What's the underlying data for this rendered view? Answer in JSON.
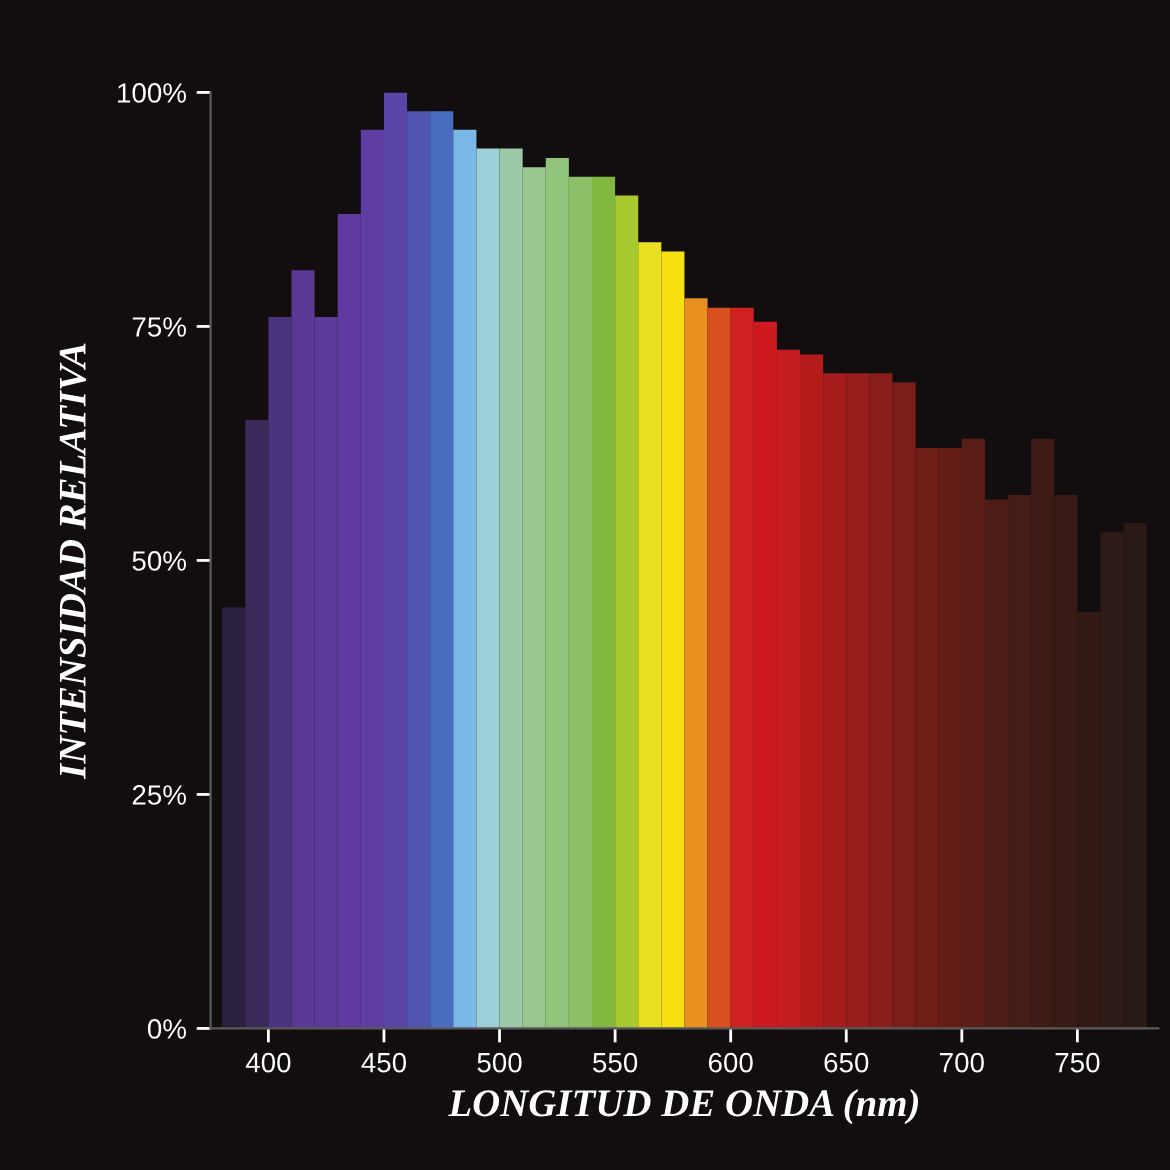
{
  "chart_data": {
    "type": "histogram",
    "xlabel": "LONGITUD DE ONDA (nm)",
    "ylabel": "INTENSIDAD RELATIVA",
    "bins": [
      380,
      390,
      400,
      410,
      420,
      430,
      440,
      450,
      460,
      470,
      480,
      490,
      500,
      510,
      520,
      530,
      540,
      550,
      560,
      570,
      580,
      590,
      600,
      610,
      620,
      630,
      640,
      650,
      660,
      670,
      680,
      690,
      700,
      710,
      720,
      730,
      740,
      750,
      760,
      770,
      780
    ],
    "values": [
      45,
      65,
      76,
      81,
      76,
      87,
      96,
      100,
      98,
      98,
      96,
      94,
      94,
      92,
      93,
      91,
      91,
      89,
      84,
      83,
      78,
      77,
      77,
      75.5,
      72.5,
      72,
      70,
      70,
      70,
      69,
      62,
      62,
      63,
      56.5,
      57,
      63,
      57,
      44.5,
      53,
      54
    ],
    "colors": [
      "#2a1f3d",
      "#3a2a5a",
      "#4a3480",
      "#5a3a95",
      "#5c3a9a",
      "#603aa0",
      "#5e3ea3",
      "#5a44a8",
      "#4f55b0",
      "#4a6cc0",
      "#7ab8e8",
      "#9ccfd8",
      "#9ccaa8",
      "#98c890",
      "#90c47a",
      "#8cc068",
      "#80b840",
      "#a8c830",
      "#e8e020",
      "#f8e010",
      "#e89020",
      "#d85020",
      "#d02020",
      "#cc1a1e",
      "#c41c20",
      "#b41c1c",
      "#a41c1c",
      "#981e1c",
      "#8a1e1a",
      "#7c1e18",
      "#6e1e16",
      "#641e16",
      "#5a1e16",
      "#4e1c16",
      "#461c16",
      "#3e1a16",
      "#381a16",
      "#321a16",
      "#2e1a16",
      "#2a1a16"
    ],
    "xlim": [
      375,
      785
    ],
    "ylim": [
      0,
      100
    ],
    "xticks": [
      400,
      450,
      500,
      550,
      600,
      650,
      700,
      750
    ],
    "yticks": [
      {
        "value": 0,
        "label": "0%"
      },
      {
        "value": 25,
        "label": "25%"
      },
      {
        "value": 50,
        "label": "50%"
      },
      {
        "value": 75,
        "label": "75%"
      },
      {
        "value": 100,
        "label": "100%"
      }
    ],
    "grid": false,
    "legend": false
  }
}
